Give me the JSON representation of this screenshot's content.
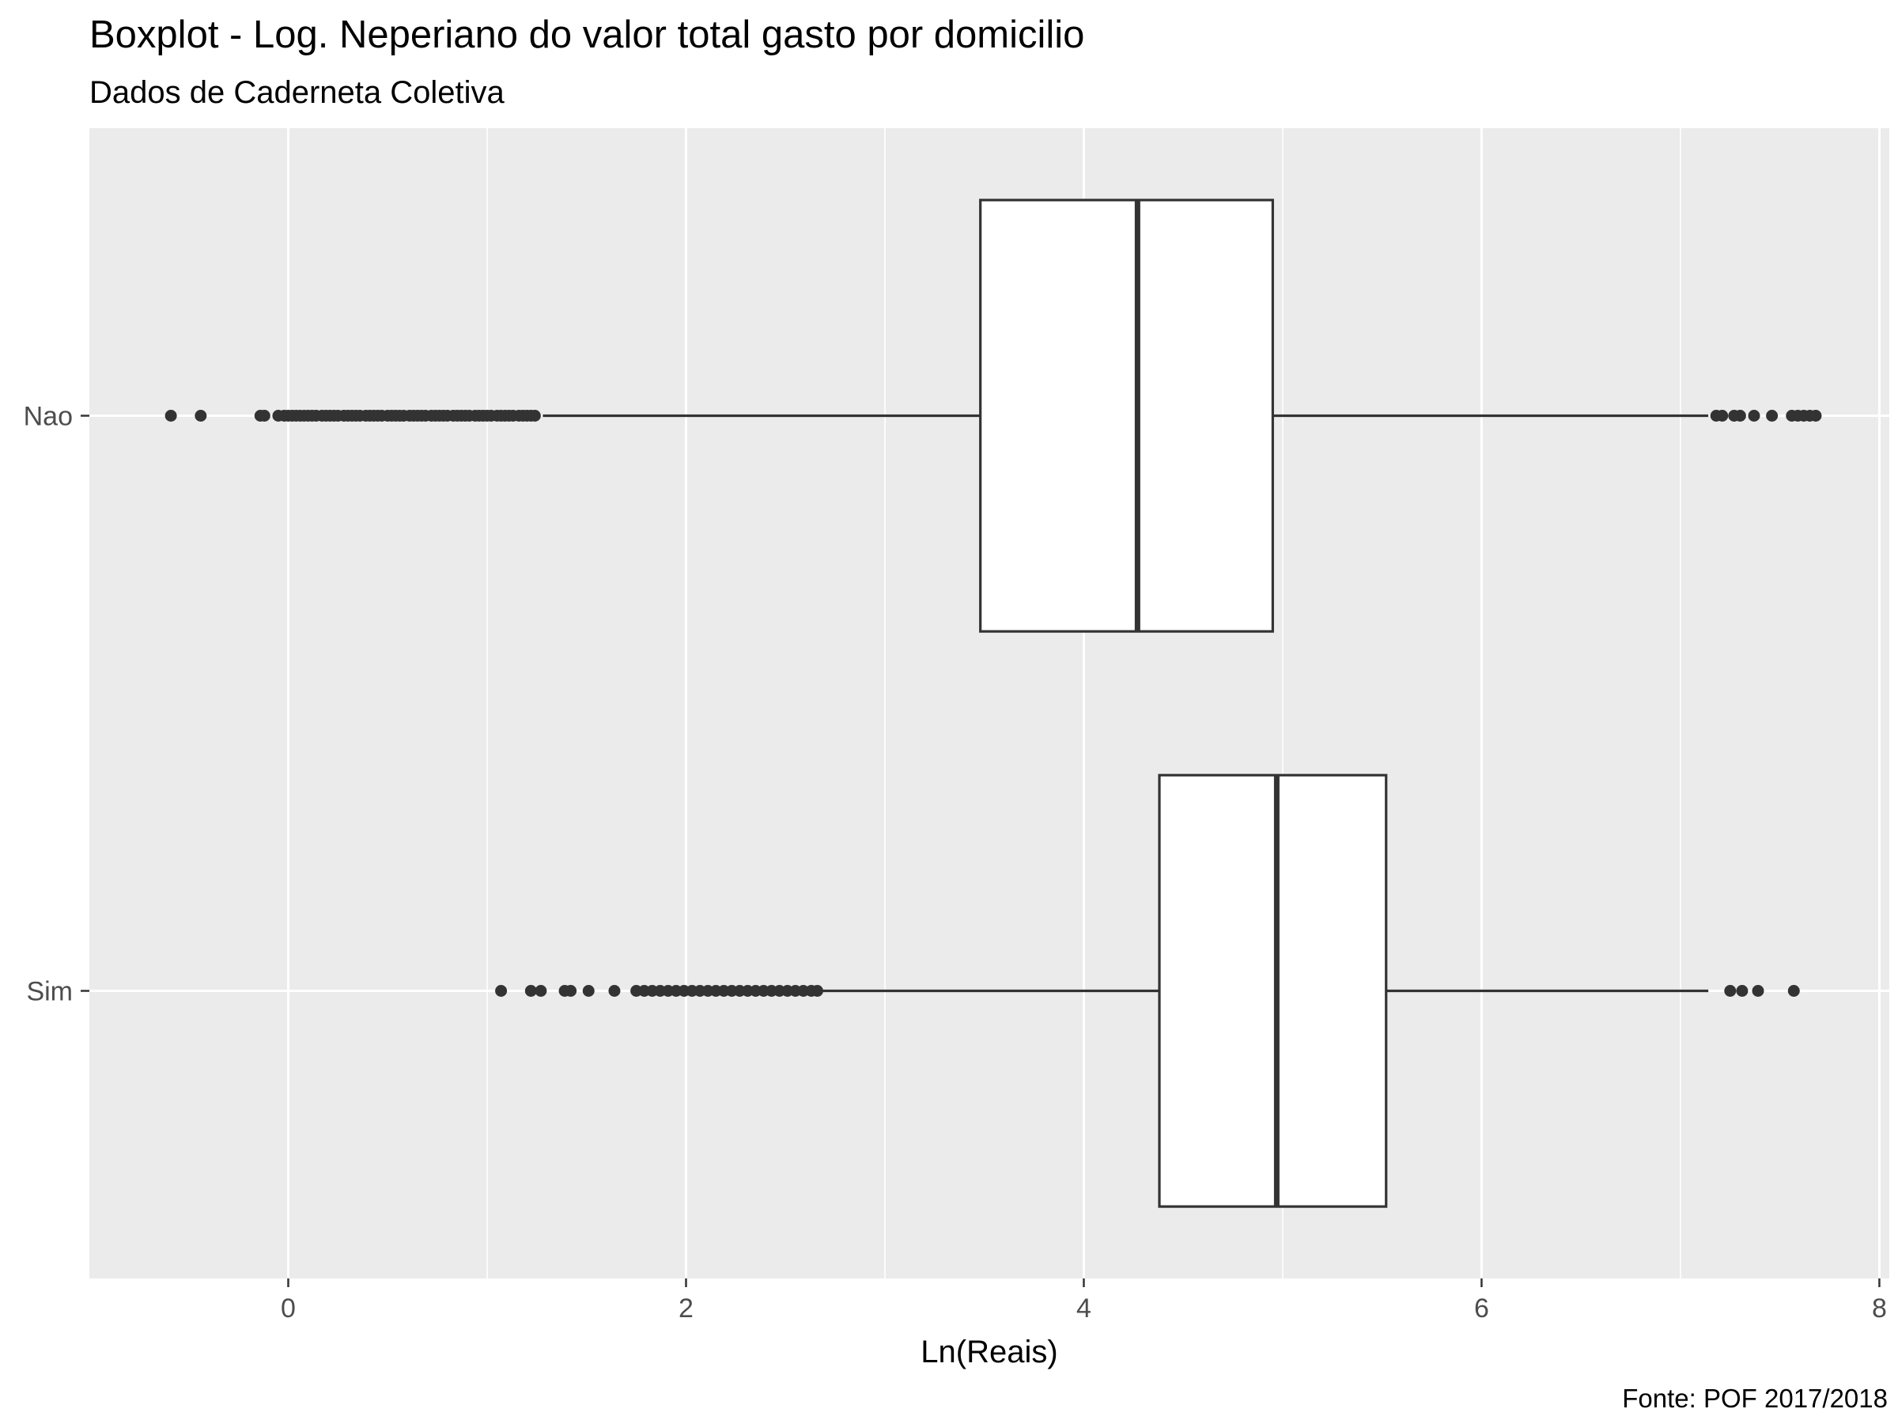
{
  "chart_data": {
    "type": "boxplot",
    "orientation": "horizontal",
    "title": "Boxplot - Log. Neperiano do valor total gasto por domicilio",
    "subtitle": "Dados de Caderneta Coletiva",
    "xlabel": "Ln(Reais)",
    "ylabel": "",
    "caption": "Fonte: POF 2017/2018",
    "xlim": [
      -1.0,
      8.05
    ],
    "x_ticks": [
      0,
      2,
      4,
      6,
      8
    ],
    "x_tick_labels": [
      "0",
      "2",
      "4",
      "6",
      "8"
    ],
    "grid": true,
    "categories": [
      "Nao",
      "Sim"
    ],
    "boxes": [
      {
        "category": "Nao",
        "whisker_low": 1.28,
        "q1": 3.48,
        "median": 4.27,
        "q3": 4.95,
        "whisker_high": 7.14,
        "outliers": [
          -0.59,
          -0.44,
          -0.14,
          -0.12,
          -0.05,
          -0.02,
          0.0,
          0.02,
          0.04,
          0.06,
          0.08,
          0.1,
          0.12,
          0.14,
          0.17,
          0.19,
          0.21,
          0.23,
          0.25,
          0.28,
          0.3,
          0.32,
          0.34,
          0.36,
          0.39,
          0.41,
          0.43,
          0.45,
          0.47,
          0.5,
          0.52,
          0.54,
          0.56,
          0.58,
          0.61,
          0.63,
          0.65,
          0.67,
          0.69,
          0.72,
          0.74,
          0.76,
          0.78,
          0.8,
          0.83,
          0.85,
          0.87,
          0.89,
          0.91,
          0.94,
          0.96,
          0.98,
          1.0,
          1.02,
          1.05,
          1.07,
          1.09,
          1.11,
          1.13,
          1.16,
          1.18,
          1.2,
          1.22,
          1.24,
          7.18,
          7.21,
          7.27,
          7.3,
          7.37,
          7.46,
          7.56,
          7.59,
          7.62,
          7.65,
          7.68
        ]
      },
      {
        "category": "Sim",
        "whisker_low": 2.68,
        "q1": 4.38,
        "median": 4.97,
        "q3": 5.52,
        "whisker_high": 7.14,
        "outliers": [
          1.07,
          1.22,
          1.27,
          1.39,
          1.42,
          1.51,
          1.64,
          1.75,
          1.79,
          1.83,
          1.87,
          1.91,
          1.95,
          1.99,
          2.03,
          2.07,
          2.11,
          2.15,
          2.19,
          2.23,
          2.27,
          2.31,
          2.35,
          2.39,
          2.43,
          2.47,
          2.51,
          2.55,
          2.59,
          2.63,
          2.66,
          7.25,
          7.31,
          7.39,
          7.57
        ]
      }
    ],
    "colors": {
      "panel_background": "#ebebeb",
      "grid_major": "#ffffff",
      "box_fill": "#ffffff",
      "box_stroke": "#333333",
      "outlier": "#333333",
      "tick_text": "#4d4d4d",
      "title_text": "#000000"
    }
  }
}
